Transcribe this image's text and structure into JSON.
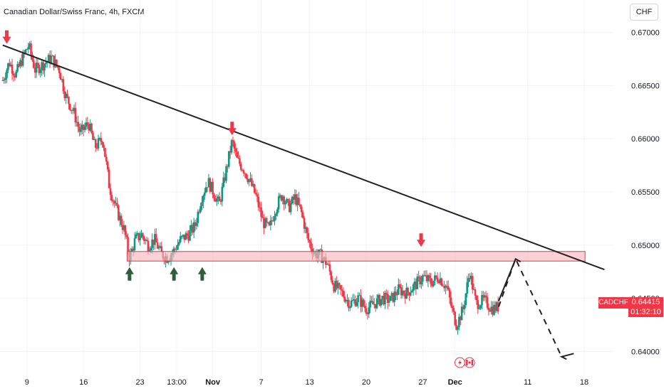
{
  "header": {
    "title": "Canadian Dollar/Swiss Franc, 4h, FXCM",
    "currency": "CHF"
  },
  "price_scale": {
    "symbol": "CADCHF",
    "last_price": "0.64415",
    "countdown": "01:32:10"
  },
  "colors": {
    "up": "#089981",
    "down": "#f23645",
    "trendline": "#222222",
    "zone_fill": "#f7b8bf",
    "zone_border": "#e0384e",
    "arrow_down": "#f23645",
    "arrow_up": "#2e5e3e"
  },
  "icons": [
    "lightning-icon",
    "canada-flag-icon"
  ],
  "chart_data": {
    "type": "candlestick",
    "title": "Canadian Dollar/Swiss Franc, 4h, FXCM",
    "y_ticks": [
      "0.67000",
      "0.66500",
      "0.66000",
      "0.65500",
      "0.65000",
      "0.64500",
      "0.64000"
    ],
    "y_tick_values": [
      0.67,
      0.665,
      0.66,
      0.655,
      0.65,
      0.645,
      0.64
    ],
    "ylim": [
      0.63775,
      0.67305
    ],
    "x_ticks": [
      {
        "label": "9",
        "day": 9
      },
      {
        "label": "16",
        "day": 16
      },
      {
        "label": "23",
        "day": 23
      },
      {
        "label": "13:00",
        "day": 27.54
      },
      {
        "label": "Nov",
        "day": 32
      },
      {
        "label": "7",
        "day": 38
      },
      {
        "label": "13",
        "day": 44
      },
      {
        "label": "20",
        "day": 51
      },
      {
        "label": "27",
        "day": 58
      },
      {
        "label": "Dec",
        "day": 62
      },
      {
        "label": "11",
        "day": 71
      },
      {
        "label": "18",
        "day": 78
      }
    ],
    "x_axis_note": "day values count from Oct 1 (Nov 1 = 32, Dec 1 = 62)",
    "xlim": [
      5.66,
      81.7
    ],
    "price_path": [
      [
        6.0,
        0.6655
      ],
      [
        6.8,
        0.6672
      ],
      [
        7.6,
        0.666
      ],
      [
        8.4,
        0.6675
      ],
      [
        9.2,
        0.6688
      ],
      [
        10.0,
        0.6665
      ],
      [
        11.0,
        0.667
      ],
      [
        12.0,
        0.6676
      ],
      [
        13.0,
        0.6665
      ],
      [
        13.8,
        0.664
      ],
      [
        14.8,
        0.6625
      ],
      [
        15.6,
        0.6605
      ],
      [
        16.6,
        0.6615
      ],
      [
        17.4,
        0.6592
      ],
      [
        18.4,
        0.66
      ],
      [
        19.2,
        0.6555
      ],
      [
        20.0,
        0.6535
      ],
      [
        21.0,
        0.6515
      ],
      [
        21.7,
        0.6488
      ],
      [
        22.4,
        0.6505
      ],
      [
        23.2,
        0.651
      ],
      [
        24.0,
        0.65
      ],
      [
        24.8,
        0.6505
      ],
      [
        25.6,
        0.6492
      ],
      [
        26.4,
        0.6488
      ],
      [
        27.2,
        0.6495
      ],
      [
        28.0,
        0.6505
      ],
      [
        29.0,
        0.651
      ],
      [
        29.8,
        0.6518
      ],
      [
        30.6,
        0.6545
      ],
      [
        31.4,
        0.656
      ],
      [
        32.2,
        0.6548
      ],
      [
        32.8,
        0.6538
      ],
      [
        33.6,
        0.6568
      ],
      [
        34.4,
        0.6598
      ],
      [
        35.0,
        0.658
      ],
      [
        35.8,
        0.6572
      ],
      [
        36.6,
        0.656
      ],
      [
        37.4,
        0.6545
      ],
      [
        38.2,
        0.6522
      ],
      [
        39.0,
        0.6515
      ],
      [
        39.8,
        0.6535
      ],
      [
        40.6,
        0.6548
      ],
      [
        41.4,
        0.6535
      ],
      [
        42.2,
        0.6545
      ],
      [
        43.0,
        0.653
      ],
      [
        43.8,
        0.6505
      ],
      [
        44.6,
        0.6492
      ],
      [
        45.4,
        0.649
      ],
      [
        46.2,
        0.6482
      ],
      [
        47.0,
        0.6462
      ],
      [
        48.0,
        0.6455
      ],
      [
        49.0,
        0.6445
      ],
      [
        50.0,
        0.645
      ],
      [
        51.0,
        0.644
      ],
      [
        52.0,
        0.6445
      ],
      [
        53.0,
        0.645
      ],
      [
        54.0,
        0.6448
      ],
      [
        55.0,
        0.6458
      ],
      [
        56.0,
        0.6455
      ],
      [
        57.0,
        0.6462
      ],
      [
        58.0,
        0.647
      ],
      [
        59.0,
        0.6465
      ],
      [
        60.0,
        0.647
      ],
      [
        61.0,
        0.646
      ],
      [
        61.6,
        0.644
      ],
      [
        62.2,
        0.6425
      ],
      [
        63.0,
        0.644
      ],
      [
        63.8,
        0.6475
      ],
      [
        64.6,
        0.6445
      ],
      [
        65.6,
        0.6448
      ],
      [
        66.6,
        0.644
      ],
      [
        67.4,
        0.6442
      ]
    ],
    "trendline": {
      "from": [
        6.0,
        0.6688
      ],
      "to": [
        80.5,
        0.6477
      ]
    },
    "resistance_zone": {
      "x_from": 21.4,
      "x_to": 78.1,
      "y_low": 0.6485,
      "y_high": 0.6494
    },
    "down_arrows": [
      [
        6.5,
        0.6688
      ],
      [
        34.4,
        0.6602
      ],
      [
        57.8,
        0.6497
      ]
    ],
    "up_arrows": [
      [
        21.7,
        0.6482
      ],
      [
        27.2,
        0.6482
      ],
      [
        30.7,
        0.6482
      ]
    ],
    "projection": [
      [
        67.4,
        0.6442
      ],
      [
        69.5,
        0.6487
      ],
      [
        75.2,
        0.6395
      ],
      [
        75.8,
        0.6388
      ],
      [
        76.7,
        0.6398
      ]
    ]
  }
}
